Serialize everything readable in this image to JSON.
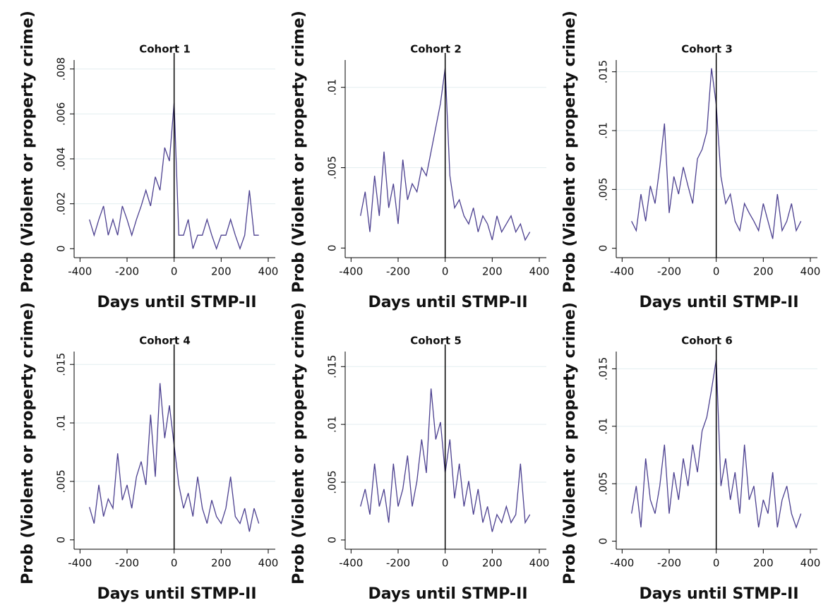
{
  "chart_data": [
    {
      "type": "line",
      "title": "Cohort 1",
      "xlabel": "Days until STMP-II",
      "ylabel": "Prob (Violent or property crime)",
      "x": [
        -360,
        -340,
        -320,
        -300,
        -280,
        -260,
        -240,
        -220,
        -200,
        -180,
        -160,
        -140,
        -120,
        -100,
        -80,
        -60,
        -40,
        -20,
        0,
        20,
        40,
        60,
        80,
        100,
        120,
        140,
        160,
        180,
        200,
        220,
        240,
        260,
        280,
        300,
        320,
        340,
        360
      ],
      "values": [
        0.0013,
        0.0006,
        0.0013,
        0.0019,
        0.0006,
        0.0013,
        0.0006,
        0.0019,
        0.0013,
        0.0006,
        0.0013,
        0.0019,
        0.0026,
        0.0019,
        0.0032,
        0.0026,
        0.0045,
        0.0039,
        0.0065,
        0.0006,
        0.0006,
        0.0013,
        0,
        0.0006,
        0.0006,
        0.0013,
        0.0006,
        0,
        0.0006,
        0.0006,
        0.0013,
        0.0006,
        0,
        0.0006,
        0.0026,
        0.0006,
        0.0006
      ],
      "color": "#4b3f8f",
      "xlim": [
        -425,
        430
      ],
      "ylim": [
        -0.0004,
        0.0084
      ],
      "xticks": [
        -400,
        -200,
        0,
        200,
        400
      ],
      "yticks": [
        0,
        {
          "value": 0.002,
          "label": ".002"
        },
        {
          "value": 0.004,
          "label": ".004"
        },
        {
          "value": 0.006,
          "label": ".006"
        },
        {
          "value": 0.008,
          "label": ".008"
        }
      ],
      "grid": true,
      "vline": 0
    },
    {
      "type": "line",
      "title": "Cohort 2",
      "xlabel": "Days until STMP-II",
      "ylabel": "Prob (Violent or property crime)",
      "x": [
        -360,
        -340,
        -320,
        -300,
        -280,
        -260,
        -240,
        -220,
        -200,
        -180,
        -160,
        -140,
        -120,
        -100,
        -80,
        -60,
        -40,
        -20,
        0,
        20,
        40,
        60,
        80,
        100,
        120,
        140,
        160,
        180,
        200,
        220,
        240,
        260,
        280,
        300,
        320,
        340,
        360
      ],
      "values": [
        0.002,
        0.0035,
        0.001,
        0.0045,
        0.002,
        0.006,
        0.0025,
        0.004,
        0.0015,
        0.0055,
        0.003,
        0.004,
        0.0035,
        0.005,
        0.0045,
        0.006,
        0.0075,
        0.009,
        0.0112,
        0.0045,
        0.0025,
        0.003,
        0.002,
        0.0015,
        0.0025,
        0.001,
        0.002,
        0.0015,
        0.0005,
        0.002,
        0.001,
        0.0015,
        0.002,
        0.001,
        0.0015,
        0.0005,
        0.001
      ],
      "color": "#4b3f8f",
      "xlim": [
        -425,
        430
      ],
      "ylim": [
        -0.0006,
        0.0117
      ],
      "xticks": [
        -400,
        -200,
        0,
        200,
        400
      ],
      "yticks": [
        0,
        {
          "value": 0.005,
          "label": ".005"
        },
        {
          "value": 0.01,
          "label": ".01"
        }
      ],
      "grid": true,
      "vline": 0
    },
    {
      "type": "line",
      "title": "Cohort 3",
      "xlabel": "Days until STMP-II",
      "ylabel": "Prob (Violent or property crime)",
      "x": [
        -360,
        -340,
        -320,
        -300,
        -280,
        -260,
        -240,
        -220,
        -200,
        -180,
        -160,
        -140,
        -120,
        -100,
        -80,
        -60,
        -40,
        -20,
        0,
        20,
        40,
        60,
        80,
        100,
        120,
        140,
        160,
        180,
        200,
        220,
        240,
        260,
        280,
        300,
        320,
        340,
        360
      ],
      "values": [
        0.0023,
        0.0015,
        0.0046,
        0.0023,
        0.0053,
        0.0038,
        0.0069,
        0.0106,
        0.003,
        0.0061,
        0.0046,
        0.0069,
        0.0053,
        0.0038,
        0.0076,
        0.0084,
        0.0099,
        0.0153,
        0.0122,
        0.0061,
        0.0038,
        0.0046,
        0.0023,
        0.0015,
        0.0038,
        0.003,
        0.0023,
        0.0015,
        0.0038,
        0.0023,
        0.0008,
        0.0046,
        0.0015,
        0.0023,
        0.0038,
        0.0015,
        0.0023
      ],
      "color": "#4b3f8f",
      "xlim": [
        -425,
        430
      ],
      "ylim": [
        -0.0008,
        0.016
      ],
      "xticks": [
        -400,
        -200,
        0,
        200,
        400
      ],
      "yticks": [
        0,
        {
          "value": 0.005,
          "label": ".005"
        },
        {
          "value": 0.01,
          "label": ".01"
        },
        {
          "value": 0.015,
          "label": ".015"
        }
      ],
      "grid": true,
      "vline": 0
    },
    {
      "type": "line",
      "title": "Cohort 4",
      "xlabel": "Days until STMP-II",
      "ylabel": "Prob (Violent or property crime)",
      "x": [
        -360,
        -340,
        -320,
        -300,
        -280,
        -260,
        -240,
        -220,
        -200,
        -180,
        -160,
        -140,
        -120,
        -100,
        -80,
        -60,
        -40,
        -20,
        0,
        20,
        40,
        60,
        80,
        100,
        120,
        140,
        160,
        180,
        200,
        220,
        240,
        260,
        280,
        300,
        320,
        340,
        360
      ],
      "values": [
        0.0028,
        0.0014,
        0.0047,
        0.002,
        0.0035,
        0.0027,
        0.0074,
        0.0034,
        0.0047,
        0.0027,
        0.0054,
        0.0067,
        0.0047,
        0.0107,
        0.0054,
        0.0134,
        0.0087,
        0.0115,
        0.0081,
        0.0047,
        0.0027,
        0.004,
        0.002,
        0.0054,
        0.0027,
        0.0014,
        0.0034,
        0.002,
        0.0014,
        0.0027,
        0.0054,
        0.002,
        0.0014,
        0.0027,
        0.0007,
        0.0027,
        0.0014
      ],
      "color": "#4b3f8f",
      "xlim": [
        -425,
        430
      ],
      "ylim": [
        -0.0008,
        0.0161
      ],
      "xticks": [
        -400,
        -200,
        0,
        200,
        400
      ],
      "yticks": [
        0,
        {
          "value": 0.005,
          "label": ".005"
        },
        {
          "value": 0.01,
          "label": ".01"
        },
        {
          "value": 0.015,
          "label": ".015"
        }
      ],
      "grid": true,
      "vline": 0
    },
    {
      "type": "line",
      "title": "Cohort 5",
      "xlabel": "Days until STMP-II",
      "ylabel": "Prob (Violent or property crime)",
      "x": [
        -360,
        -340,
        -320,
        -300,
        -280,
        -260,
        -240,
        -220,
        -200,
        -180,
        -160,
        -140,
        -120,
        -100,
        -80,
        -60,
        -40,
        -20,
        0,
        20,
        40,
        60,
        80,
        100,
        120,
        140,
        160,
        180,
        200,
        220,
        240,
        260,
        280,
        300,
        320,
        340,
        360
      ],
      "values": [
        0.0029,
        0.0044,
        0.0022,
        0.0066,
        0.0029,
        0.0044,
        0.0015,
        0.0066,
        0.0029,
        0.0044,
        0.0073,
        0.0029,
        0.0051,
        0.0087,
        0.0058,
        0.0131,
        0.0087,
        0.0102,
        0.0058,
        0.0087,
        0.0036,
        0.0066,
        0.0029,
        0.0051,
        0.0022,
        0.0044,
        0.0015,
        0.0029,
        0.0007,
        0.0022,
        0.0015,
        0.0029,
        0.0015,
        0.0022,
        0.0066,
        0.0015,
        0.0022
      ],
      "color": "#4b3f8f",
      "xlim": [
        -425,
        430
      ],
      "ylim": [
        -0.0008,
        0.0163
      ],
      "xticks": [
        -400,
        -200,
        0,
        200,
        400
      ],
      "yticks": [
        0,
        {
          "value": 0.005,
          "label": ".005"
        },
        {
          "value": 0.01,
          "label": ".01"
        },
        {
          "value": 0.015,
          "label": ".015"
        }
      ],
      "grid": true,
      "vline": 0
    },
    {
      "type": "line",
      "title": "Cohort 6",
      "xlabel": "Days until STMP-II",
      "ylabel": "Prob (Violent or property crime)",
      "x": [
        -360,
        -340,
        -320,
        -300,
        -280,
        -260,
        -240,
        -220,
        -200,
        -180,
        -160,
        -140,
        -120,
        -100,
        -80,
        -60,
        -40,
        -20,
        0,
        20,
        40,
        60,
        80,
        100,
        120,
        140,
        160,
        180,
        200,
        220,
        240,
        260,
        280,
        300,
        320,
        340,
        360
      ],
      "values": [
        0.0024,
        0.0048,
        0.0012,
        0.0072,
        0.0036,
        0.0024,
        0.0048,
        0.0084,
        0.0024,
        0.006,
        0.0036,
        0.0072,
        0.0048,
        0.0084,
        0.006,
        0.0096,
        0.0108,
        0.0132,
        0.0158,
        0.0048,
        0.0072,
        0.0036,
        0.006,
        0.0024,
        0.0084,
        0.0036,
        0.0048,
        0.0012,
        0.0036,
        0.0024,
        0.006,
        0.0012,
        0.0036,
        0.0048,
        0.0024,
        0.0012,
        0.0024
      ],
      "color": "#4b3f8f",
      "xlim": [
        -425,
        430
      ],
      "ylim": [
        -0.0007,
        0.0165
      ],
      "xticks": [
        -400,
        -200,
        0,
        200,
        400
      ],
      "yticks": [
        0,
        {
          "value": 0.005,
          "label": ".005"
        },
        {
          "value": 0.01,
          "label": ".01"
        },
        {
          "value": 0.015,
          "label": ".015"
        }
      ],
      "grid": true,
      "vline": 0
    }
  ]
}
